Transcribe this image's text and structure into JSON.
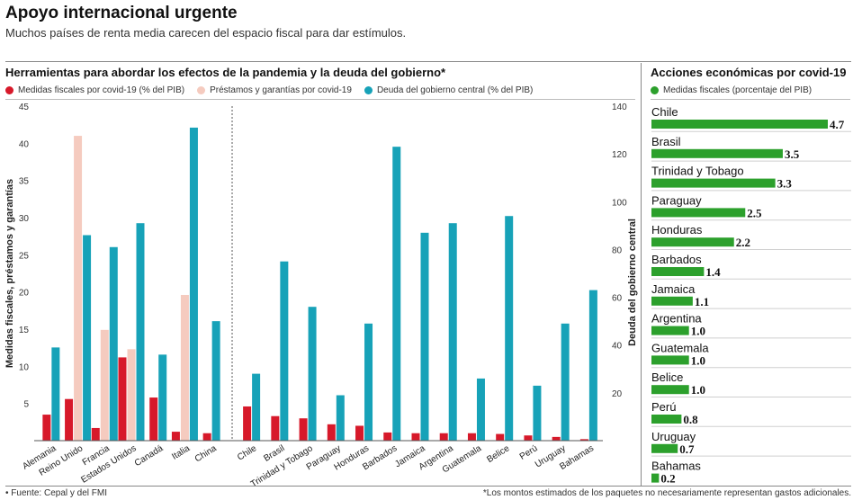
{
  "header": {
    "title": "Apoyo internacional urgente",
    "subtitle": "Muchos países de renta media carecen del espacio fiscal para dar estímulos."
  },
  "footer": {
    "source": "• Fuente: Cepal y del FMI",
    "note": "*Los montos estimados de los paquetes no necesariamente representan gastos adicionales."
  },
  "chart_data": [
    {
      "type": "bar",
      "title": "Herramientas para abordar los efectos de la pandemia y la deuda del gobierno*",
      "ylabel": "Medidas fiscales, préstamos y garantías",
      "y2label": "Deuda del gobierno central",
      "ylim": [
        0,
        45
      ],
      "y2lim": [
        0,
        140
      ],
      "yticks": [
        5,
        10,
        15,
        20,
        25,
        30,
        35,
        40,
        45
      ],
      "y2ticks": [
        20,
        40,
        60,
        80,
        100,
        120,
        140
      ],
      "categories": [
        "Alemania",
        "Reino Unido",
        "Francia",
        "Estados Unidos",
        "Canadá",
        "Italia",
        "China",
        "Chile",
        "Brasil",
        "Trinidad y Tobago",
        "Paraguay",
        "Honduras",
        "Barbados",
        "Jamaica",
        "Argentina",
        "Guatemala",
        "Belice",
        "Perú",
        "Uruguay",
        "Bahamas"
      ],
      "group_divider_after": 6,
      "series": [
        {
          "name": "Medidas fiscales por covid-19 (% del PIB)",
          "axis": "left",
          "color": "#d7192a",
          "values": [
            3.5,
            5.6,
            1.7,
            11.2,
            5.8,
            1.2,
            1.0,
            4.6,
            3.3,
            3.0,
            2.2,
            2.0,
            1.1,
            1.0,
            1.0,
            1.0,
            0.9,
            0.7,
            0.5,
            0.2
          ]
        },
        {
          "name": "Préstamos y garantías por covid-19",
          "axis": "left",
          "color": "#f5cbbf",
          "values": [
            null,
            41.0,
            14.9,
            12.3,
            null,
            19.6,
            null,
            null,
            null,
            null,
            null,
            null,
            null,
            null,
            null,
            null,
            null,
            null,
            null,
            null
          ]
        },
        {
          "name": "Deuda del gobierno central (% del PIB)",
          "axis": "right",
          "color": "#17a2b8",
          "values": [
            39,
            86,
            81,
            91,
            36,
            131,
            50,
            28,
            75,
            56,
            19,
            49,
            123,
            87,
            91,
            26,
            94,
            23,
            49,
            63
          ]
        }
      ],
      "legend_placement": "top",
      "grid": false
    },
    {
      "type": "bar",
      "orientation": "horizontal",
      "title": "Acciones económicas por covid-19",
      "series": [
        {
          "name": "Medidas fiscales (porcentaje del PIB)",
          "color": "#2ca02c",
          "values": [
            4.7,
            3.5,
            3.3,
            2.5,
            2.2,
            1.4,
            1.1,
            1.0,
            1.0,
            1.0,
            0.8,
            0.7,
            0.2
          ]
        }
      ],
      "categories": [
        "Chile",
        "Brasil",
        "Trinidad y Tobago",
        "Paraguay",
        "Honduras",
        "Barbados",
        "Jamaica",
        "Argentina",
        "Guatemala",
        "Belice",
        "Perú",
        "Uruguay",
        "Bahamas"
      ],
      "value_labels": [
        "4.7",
        "3.5",
        "3.3",
        "2.5",
        "2.2",
        "1.4",
        "1.1",
        "1.0",
        "1.0",
        "1.0",
        "0.8",
        "0.7",
        "0.2"
      ],
      "xlim": [
        0,
        4.7
      ],
      "legend_placement": "top"
    }
  ]
}
